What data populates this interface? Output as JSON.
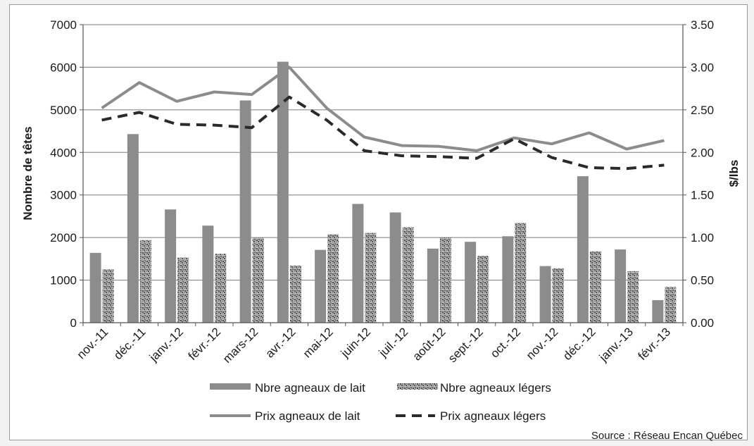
{
  "chart_data": {
    "type": "bar",
    "categories": [
      "nov.-11",
      "déc.-11",
      "janv.-12",
      "févr.-12",
      "mars-12",
      "avr.-12",
      "mai-12",
      "juin-12",
      "juil.-12",
      "août-12",
      "sept.-12",
      "oct.-12",
      "nov.-12",
      "déc.-12",
      "janv.-13",
      "févr.-13"
    ],
    "series": [
      {
        "name": "Nbre agneaux de lait",
        "kind": "bar",
        "axis": "left",
        "color": "#8c8c8c",
        "values": [
          1640,
          4430,
          2660,
          2280,
          5220,
          6130,
          1710,
          2790,
          2590,
          1740,
          1900,
          2030,
          1330,
          3440,
          1720,
          530
        ]
      },
      {
        "name": "Nbre agneaux légers",
        "kind": "bar",
        "axis": "left",
        "pattern": "speckled gray",
        "values": [
          1250,
          1940,
          1530,
          1620,
          1990,
          1340,
          2080,
          2110,
          2240,
          2000,
          1570,
          2340,
          1280,
          1680,
          1210,
          840
        ]
      },
      {
        "name": "Prix agneaux de lait",
        "kind": "line",
        "axis": "right",
        "color": "#8c8c8c",
        "dash": "solid",
        "values": [
          2.52,
          2.82,
          2.6,
          2.71,
          2.68,
          3.0,
          2.52,
          2.18,
          2.08,
          2.07,
          2.02,
          2.17,
          2.1,
          2.23,
          2.04,
          2.14
        ]
      },
      {
        "name": "Prix agneaux légers",
        "kind": "line",
        "axis": "right",
        "color": "#2a2a2a",
        "dash": "dashed",
        "values": [
          2.38,
          2.47,
          2.33,
          2.32,
          2.29,
          2.65,
          2.38,
          2.02,
          1.96,
          1.95,
          1.93,
          2.16,
          1.94,
          1.82,
          1.81,
          1.85
        ]
      }
    ],
    "ylabel_left": "Nombre de têtes",
    "ylabel_right": "$/lbs",
    "ylim_left": [
      0,
      7000
    ],
    "ylim_right": [
      0,
      3.5
    ],
    "yticks_left": [
      "0",
      "1000",
      "2000",
      "3000",
      "4000",
      "5000",
      "6000",
      "7000"
    ],
    "yticks_right": [
      "0.00",
      "0.50",
      "1.00",
      "1.50",
      "2.00",
      "2.50",
      "3.00",
      "3.50"
    ],
    "grid": true,
    "legend_placement": "bottom",
    "source": "Source : Réseau Encan Québec"
  }
}
